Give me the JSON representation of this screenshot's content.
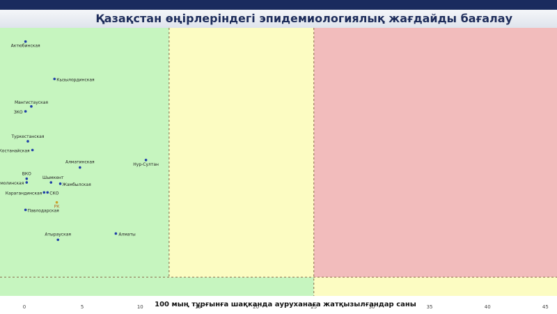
{
  "header": {
    "title": "Қазақстан өңірлеріндегі эпидемиологиялық жағдайды бағалау"
  },
  "colors": {
    "green_zone": "#c6f5bf",
    "yellow_zone": "#fcfcc2",
    "red_zone": "#f2bcbc",
    "point": "#1f3ea8",
    "rk_point": "#c9a227",
    "divider": "#8a6a4a"
  },
  "chart_data": {
    "type": "scatter",
    "title": "Қазақстан өңірлеріндегі эпидемиологиялық жағдайды бағалау",
    "xlabel": "100 мың тұрғынға шақканда ауруханаға жатқызылғандар саны",
    "ylabel": "",
    "xlim": [
      0,
      46
    ],
    "ylim": [
      0,
      21.5
    ],
    "x_ticks": [
      0,
      5,
      10,
      15,
      20,
      25,
      30,
      35,
      40,
      45
    ],
    "zones": [
      {
        "name": "green",
        "x_from": 0,
        "x_to": 12.5,
        "y_from": 1.5,
        "y_to": 21.5
      },
      {
        "name": "yellow",
        "x_from": 12.5,
        "x_to": 25,
        "y_from": 1.5,
        "y_to": 21.5
      },
      {
        "name": "red",
        "x_from": 25,
        "x_to": 46,
        "y_from": 1.5,
        "y_to": 21.5
      },
      {
        "name": "green",
        "x_from": 0,
        "x_to": 25,
        "y_from": 0,
        "y_to": 1.5
      },
      {
        "name": "yellow",
        "x_from": 25,
        "x_to": 46,
        "y_from": 0,
        "y_to": 1.5
      }
    ],
    "points": [
      {
        "label": "Актюбинская",
        "x": 0.1,
        "y": 20.4
      },
      {
        "label": "Кызылординская",
        "x": 2.6,
        "y": 17.4
      },
      {
        "label": "Мангистауская",
        "x": 0.6,
        "y": 15.2
      },
      {
        "label": "ЗКО",
        "x": 0.1,
        "y": 14.8
      },
      {
        "label": "Туркестанская",
        "x": 0.3,
        "y": 12.4
      },
      {
        "label": "Костанайская",
        "x": 0.7,
        "y": 11.7
      },
      {
        "label": "Нур-Султан",
        "x": 10.5,
        "y": 10.9
      },
      {
        "label": "Алматинская",
        "x": 4.8,
        "y": 10.3
      },
      {
        "label": "ВКО",
        "x": 0.2,
        "y": 9.4
      },
      {
        "label": "Акмолинская",
        "x": 0.2,
        "y": 9.1
      },
      {
        "label": "Шымкент",
        "x": 2.3,
        "y": 9.1
      },
      {
        "label": "Жамбылская",
        "x": 3.1,
        "y": 9.0
      },
      {
        "label": "Карагандинская",
        "x": 1.7,
        "y": 8.3
      },
      {
        "label": "СКО",
        "x": 2.0,
        "y": 8.3
      },
      {
        "label": "РК",
        "x": 2.8,
        "y": 7.5
      },
      {
        "label": "Павлодарская",
        "x": 0.1,
        "y": 6.9
      },
      {
        "label": "Алматы",
        "x": 7.9,
        "y": 5.0
      },
      {
        "label": "Атырауская",
        "x": 2.9,
        "y": 4.5
      }
    ]
  }
}
